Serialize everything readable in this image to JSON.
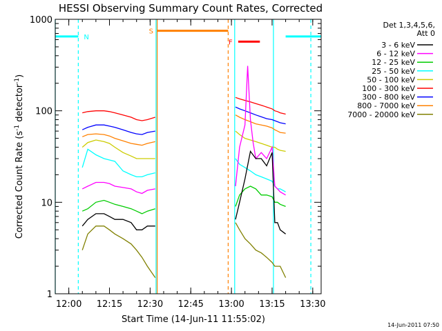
{
  "chart_data": {
    "type": "line",
    "title": "HESSI Observing Summary Count Rates, Corrected",
    "xlabel": "Start Time (14-Jun-11 11:55:02)",
    "ylabel_main": "Corrected Count Rate (s",
    "ylabel_sup1": "-1",
    "ylabel_mid": " detector",
    "ylabel_sup2": "-1",
    "ylabel_end": ")",
    "x_ticks": [
      "12:00",
      "12:15",
      "12:30",
      "12:45",
      "13:00",
      "13:15",
      "13:30"
    ],
    "x_tick_minutes": [
      5,
      20,
      35,
      50,
      65,
      80,
      95
    ],
    "xlim_minutes": [
      0,
      98.1
    ],
    "y_scale": "log",
    "ylim": [
      1,
      1000
    ],
    "y_tick_values": [
      1,
      10,
      100,
      1000
    ],
    "y_ticks": [
      "1",
      "10",
      "100",
      "1000"
    ],
    "legend_title_1": "Det 1,3,4,5,6,",
    "legend_title_2": "Att 0",
    "legend_position": "right",
    "series": [
      {
        "name": "3 - 6 keV",
        "color": "#000000",
        "segments": [
          {
            "t": [
              10,
              12,
              15,
              18,
              20,
              22,
              25,
              28,
              30,
              32,
              34,
              36.9
            ],
            "v": [
              5.5,
              6.5,
              7.5,
              7.5,
              7,
              6.5,
              6.5,
              6,
              5,
              5,
              5.5,
              5.5
            ]
          },
          {
            "t": [
              66.5,
              68,
              70,
              72,
              74,
              76,
              78,
              80,
              81,
              82,
              83,
              85
            ],
            "v": [
              6.5,
              10,
              18,
              36,
              30,
              30,
              25,
              35,
              6,
              6,
              5,
              4.5
            ]
          }
        ]
      },
      {
        "name": "6 - 12 keV",
        "color": "#ff00ff",
        "segments": [
          {
            "t": [
              10,
              12,
              15,
              18,
              20,
              22,
              25,
              28,
              30,
              32,
              34,
              36.9
            ],
            "v": [
              14,
              15,
              16.5,
              16.5,
              16,
              15,
              14.5,
              14,
              13,
              12.5,
              13.5,
              14
            ]
          },
          {
            "t": [
              66.5,
              68,
              70,
              71,
              72,
              73,
              74,
              76,
              78,
              80,
              81,
              82,
              83,
              85
            ],
            "v": [
              15,
              40,
              70,
              310,
              80,
              45,
              30,
              35,
              30,
              40,
              15,
              14,
              13,
              12
            ]
          }
        ]
      },
      {
        "name": "12 - 25 keV",
        "color": "#00cc00",
        "segments": [
          {
            "t": [
              10,
              12,
              15,
              18,
              20,
              22,
              25,
              28,
              30,
              32,
              34,
              36.9
            ],
            "v": [
              8,
              8.5,
              10,
              10.5,
              10,
              9.5,
              9,
              8.5,
              8,
              7.5,
              8,
              8.5
            ]
          },
          {
            "t": [
              66.5,
              68,
              70,
              72,
              74,
              76,
              78,
              80,
              81,
              82,
              83,
              85
            ],
            "v": [
              9,
              12,
              14,
              15,
              14,
              12,
              12,
              11.5,
              10,
              10,
              9.5,
              9
            ]
          }
        ]
      },
      {
        "name": "25 - 50 keV",
        "color": "#00ffff",
        "segments": [
          {
            "t": [
              10,
              12,
              15,
              18,
              20,
              22,
              25,
              28,
              30,
              32,
              34,
              36.9
            ],
            "v": [
              24,
              38,
              33,
              30,
              29,
              28,
              22,
              20,
              19,
              19,
              20,
              21
            ]
          },
          {
            "t": [
              66.5,
              68,
              70,
              72,
              74,
              76,
              78,
              80,
              81,
              82,
              83,
              85
            ],
            "v": [
              30,
              26,
              24,
              22,
              20,
              19,
              18,
              17,
              15,
              14,
              14,
              13
            ]
          }
        ]
      },
      {
        "name": "50 - 100 keV",
        "color": "#cccc00",
        "segments": [
          {
            "t": [
              10,
              12,
              15,
              18,
              20,
              22,
              25,
              28,
              30,
              32,
              34,
              36.9
            ],
            "v": [
              40,
              45,
              48,
              46,
              44,
              40,
              35,
              32,
              30,
              30,
              30,
              30
            ]
          },
          {
            "t": [
              66.5,
              68,
              70,
              72,
              74,
              76,
              78,
              80,
              81,
              82,
              83,
              85
            ],
            "v": [
              60,
              55,
              50,
              48,
              46,
              44,
              42,
              40,
              40,
              38,
              37,
              36
            ]
          }
        ]
      },
      {
        "name": "100 - 300 keV",
        "color": "#ff0000",
        "segments": [
          {
            "t": [
              10,
              12,
              15,
              18,
              20,
              22,
              25,
              28,
              30,
              32,
              34,
              36.9
            ],
            "v": [
              95,
              98,
              100,
              100,
              98,
              95,
              90,
              85,
              80,
              78,
              80,
              85
            ]
          },
          {
            "t": [
              66.5,
              68,
              70,
              72,
              74,
              76,
              78,
              80,
              81,
              82,
              83,
              85
            ],
            "v": [
              140,
              135,
              130,
              125,
              120,
              115,
              110,
              105,
              100,
              98,
              95,
              92
            ]
          }
        ]
      },
      {
        "name": "300 - 800 keV",
        "color": "#0000ff",
        "segments": [
          {
            "t": [
              10,
              12,
              15,
              18,
              20,
              22,
              25,
              28,
              30,
              32,
              34,
              36.9
            ],
            "v": [
              62,
              66,
              70,
              70,
              68,
              66,
              62,
              58,
              56,
              55,
              58,
              60
            ]
          },
          {
            "t": [
              66.5,
              68,
              70,
              72,
              74,
              76,
              78,
              80,
              81,
              82,
              83,
              85
            ],
            "v": [
              110,
              105,
              100,
              95,
              90,
              86,
              82,
              80,
              78,
              76,
              74,
              72
            ]
          }
        ]
      },
      {
        "name": "800 - 7000 keV",
        "color": "#ff8000",
        "segments": [
          {
            "t": [
              10,
              12,
              15,
              18,
              20,
              22,
              25,
              28,
              30,
              32,
              34,
              36.9
            ],
            "v": [
              52,
              55,
              56,
              55,
              53,
              50,
              47,
              44,
              43,
              42,
              44,
              46
            ]
          },
          {
            "t": [
              66.5,
              68,
              70,
              72,
              74,
              76,
              78,
              80,
              81,
              82,
              83,
              85
            ],
            "v": [
              90,
              85,
              80,
              76,
              72,
              70,
              68,
              65,
              62,
              60,
              58,
              57
            ]
          }
        ]
      },
      {
        "name": "7000 - 20000 keV",
        "color": "#808000",
        "segments": [
          {
            "t": [
              10,
              12,
              15,
              18,
              20,
              22,
              25,
              28,
              30,
              32,
              34,
              36.9
            ],
            "v": [
              3,
              4.5,
              5.5,
              5.5,
              5,
              4.5,
              4,
              3.5,
              3,
              2.5,
              2,
              1.5
            ]
          },
          {
            "t": [
              66.5,
              68,
              70,
              72,
              74,
              76,
              78,
              80,
              81,
              82,
              83,
              85
            ],
            "v": [
              6,
              5,
              4,
              3.5,
              3,
              2.8,
              2.5,
              2.2,
              2,
              2,
              2,
              1.5
            ]
          }
        ]
      }
    ],
    "annotations": {
      "night_label": "N",
      "saa_label": "S",
      "flare_label": "F",
      "night_color": "#00ffff",
      "saa_color": "#ff8000",
      "flare_color": "#ff0000",
      "night_bars": [
        [
          0,
          8.5
        ],
        [
          85,
          98.1
        ]
      ],
      "saa_bar": [
        37.6,
        63.8
      ],
      "flare_bar": [
        67.5,
        75.5
      ],
      "cyan_solid_lines": [
        0,
        37.2,
        66.2,
        80.5
      ],
      "cyan_dashed_lines": [
        8.5,
        94.3
      ],
      "orange_solid_lines": [
        37.6
      ],
      "orange_dashed_lines": [
        63.8
      ],
      "bar_level": 650,
      "saa_bar_level": 750,
      "flare_bar_level": 570
    },
    "footer_date": "14-Jun-2011 07:50"
  }
}
